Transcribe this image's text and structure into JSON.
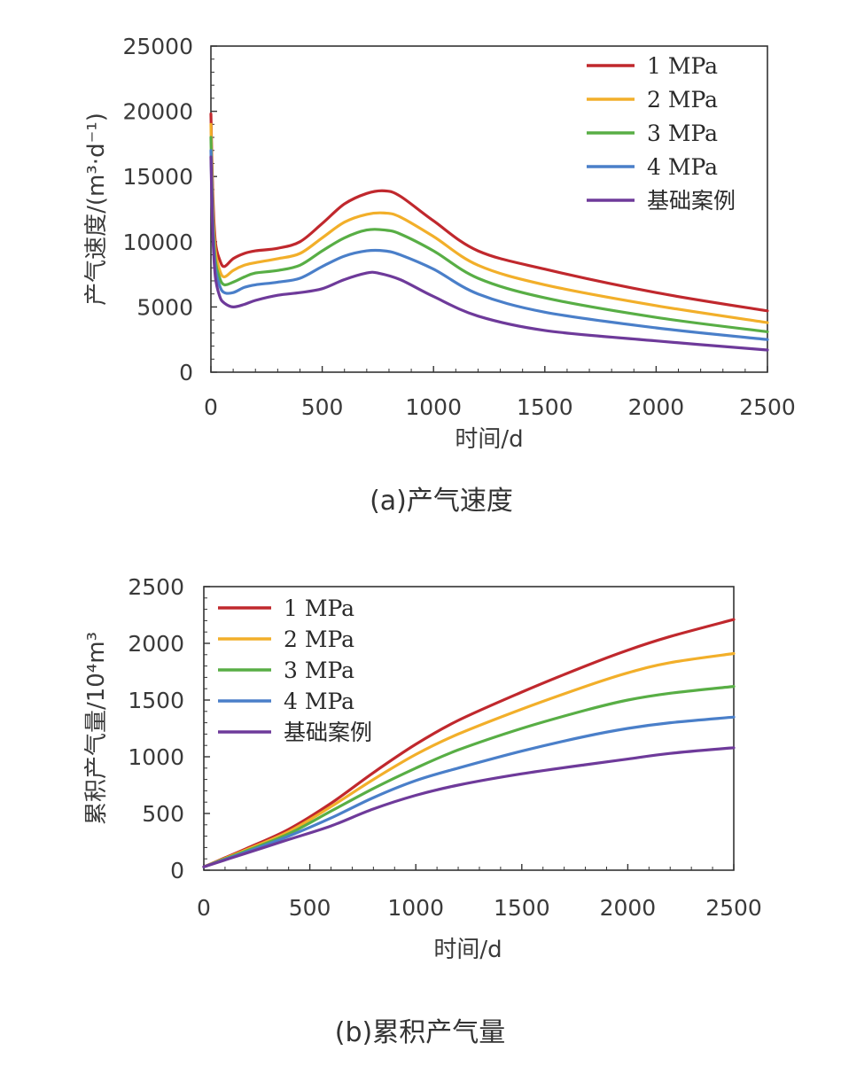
{
  "colors": {
    "1MPa": "#C0282D",
    "2MPa": "#F2AF2A",
    "3MPa": "#58AE45",
    "4MPa": "#4A7FC9",
    "base": "#6E3A9A"
  },
  "chart_data": [
    {
      "type": "line",
      "caption": "(a)产气速度",
      "xlabel": "时间/d",
      "ylabel_main": "产气速度/",
      "ylabel_unit": "(m³·d⁻¹)",
      "xlim": [
        0,
        2500
      ],
      "ylim": [
        0,
        25000
      ],
      "xticks": [
        "0",
        "500",
        "1000",
        "1500",
        "2000",
        "2500"
      ],
      "yticks": [
        "0",
        "5000",
        "10000",
        "15000",
        "20000",
        "25000"
      ],
      "legend_position": "top-right",
      "series": [
        {
          "name": "1 MPa",
          "color_key": "1MPa",
          "x": [
            0,
            8,
            20,
            40,
            60,
            100,
            150,
            200,
            300,
            400,
            500,
            600,
            700,
            780,
            850,
            1000,
            1200,
            1500,
            2000,
            2500
          ],
          "y": [
            19800,
            14000,
            10000,
            8600,
            8100,
            8700,
            9100,
            9300,
            9500,
            10000,
            11400,
            12900,
            13700,
            13900,
            13500,
            11600,
            9300,
            7900,
            6100,
            4700
          ]
        },
        {
          "name": "2 MPa",
          "color_key": "2MPa",
          "x": [
            0,
            8,
            20,
            40,
            60,
            100,
            150,
            200,
            300,
            400,
            500,
            600,
            700,
            780,
            850,
            1000,
            1200,
            1500,
            2000,
            2500
          ],
          "y": [
            19000,
            13000,
            9300,
            7800,
            7300,
            7800,
            8200,
            8400,
            8700,
            9100,
            10300,
            11500,
            12100,
            12200,
            11900,
            10400,
            8200,
            6700,
            5100,
            3800
          ]
        },
        {
          "name": "3 MPa",
          "color_key": "3MPa",
          "x": [
            0,
            8,
            20,
            40,
            60,
            100,
            150,
            200,
            300,
            400,
            500,
            600,
            700,
            780,
            850,
            1000,
            1200,
            1500,
            2000,
            2500
          ],
          "y": [
            18000,
            12200,
            8600,
            7200,
            6700,
            6900,
            7300,
            7600,
            7800,
            8200,
            9300,
            10300,
            10900,
            10900,
            10600,
            9300,
            7200,
            5700,
            4200,
            3100
          ]
        },
        {
          "name": "4 MPa",
          "color_key": "4MPa",
          "x": [
            0,
            8,
            20,
            40,
            60,
            100,
            150,
            200,
            300,
            400,
            500,
            600,
            700,
            780,
            850,
            1000,
            1200,
            1500,
            2000,
            2500
          ],
          "y": [
            17000,
            11500,
            8000,
            6600,
            6100,
            6100,
            6500,
            6700,
            6900,
            7200,
            8100,
            8900,
            9300,
            9300,
            9000,
            7900,
            6000,
            4600,
            3400,
            2500
          ]
        },
        {
          "name": "基础案例",
          "color_key": "base",
          "x": [
            0,
            8,
            20,
            40,
            60,
            100,
            150,
            200,
            300,
            400,
            500,
            600,
            700,
            750,
            850,
            1000,
            1200,
            1500,
            2000,
            2500
          ],
          "y": [
            16500,
            10800,
            7300,
            5800,
            5300,
            5000,
            5200,
            5500,
            5900,
            6100,
            6400,
            7100,
            7600,
            7600,
            7100,
            5800,
            4300,
            3200,
            2400,
            1700
          ]
        }
      ]
    },
    {
      "type": "line",
      "caption": "(b)累积产气量",
      "xlabel": "时间/d",
      "ylabel": "累积产气量/10⁴m³",
      "xlim": [
        0,
        2500
      ],
      "ylim": [
        0,
        2500
      ],
      "xticks": [
        "0",
        "500",
        "1000",
        "1500",
        "2000",
        "2500"
      ],
      "yticks": [
        "0",
        "500",
        "1000",
        "1500",
        "2000",
        "2500"
      ],
      "legend_position": "top-left",
      "series": [
        {
          "name": "1 MPa",
          "color_key": "1MPa",
          "x": [
            0,
            200,
            400,
            600,
            800,
            1000,
            1200,
            1500,
            1800,
            2000,
            2200,
            2500
          ],
          "y": [
            30,
            190,
            360,
            590,
            860,
            1110,
            1320,
            1570,
            1800,
            1940,
            2060,
            2210
          ]
        },
        {
          "name": "2 MPa",
          "color_key": "2MPa",
          "x": [
            0,
            200,
            400,
            600,
            800,
            1000,
            1200,
            1500,
            1800,
            2000,
            2200,
            2500
          ],
          "y": [
            30,
            180,
            340,
            560,
            800,
            1020,
            1200,
            1420,
            1620,
            1740,
            1830,
            1910
          ]
        },
        {
          "name": "3 MPa",
          "color_key": "3MPa",
          "x": [
            0,
            200,
            400,
            600,
            800,
            1000,
            1200,
            1500,
            1800,
            2000,
            2200,
            2500
          ],
          "y": [
            30,
            170,
            320,
            520,
            720,
            900,
            1060,
            1250,
            1410,
            1500,
            1560,
            1620
          ]
        },
        {
          "name": "4 MPa",
          "color_key": "4MPa",
          "x": [
            0,
            200,
            400,
            600,
            800,
            1000,
            1200,
            1500,
            1800,
            2000,
            2200,
            2500
          ],
          "y": [
            30,
            160,
            300,
            460,
            640,
            790,
            900,
            1050,
            1180,
            1250,
            1300,
            1350
          ]
        },
        {
          "name": "基础案例",
          "color_key": "base",
          "x": [
            0,
            200,
            400,
            600,
            800,
            1000,
            1200,
            1500,
            1800,
            2000,
            2200,
            2500
          ],
          "y": [
            30,
            150,
            270,
            390,
            540,
            660,
            750,
            850,
            930,
            980,
            1030,
            1080
          ]
        }
      ]
    }
  ]
}
